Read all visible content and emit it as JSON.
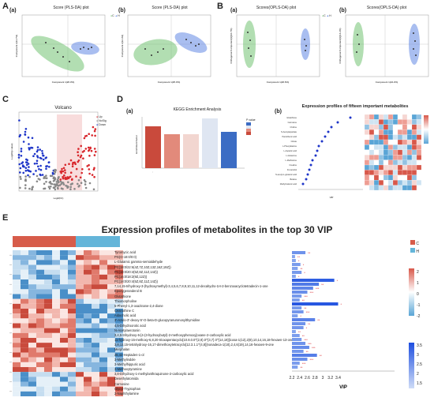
{
  "panels": {
    "A": {
      "letter": "A",
      "left": {
        "sub": "(a)",
        "title": "Score (PLS-DA) plot",
        "xlabel": "Component 1(26.3%)",
        "ylabel": "Component 2(13.7%)"
      },
      "right": {
        "sub": "(b)",
        "title": "Score (PLS-DA) plot",
        "xlabel": "Component 1(25.3%)",
        "ylabel": "Component 2(12.3%)"
      },
      "legend": [
        "C",
        "H"
      ]
    },
    "B": {
      "letter": "B",
      "left": {
        "sub": "(a)",
        "title": "Scores(OPLS-DA) plot",
        "xlabel": "Component 1(26.6%)",
        "ylabel": "Orthogonal Component[1](10.7%)"
      },
      "right": {
        "sub": "(b)",
        "title": "Scores(OPLS-DA) plot",
        "xlabel": "Component 1(24.2%)",
        "ylabel": "Orthogonal Component[1](14.2%)"
      },
      "legend": [
        "C",
        "H"
      ]
    },
    "C": {
      "letter": "C",
      "title": "Volcano",
      "xlabel": "Log2(FC)",
      "ylabel": "-Log10(p value)",
      "legend": [
        "Up",
        "NoSig",
        "Down"
      ]
    },
    "D": {
      "letter": "D",
      "a": {
        "sub": "(a)",
        "title": "KEGG Enrichment Analysis",
        "ylabel": "Enrichment factor",
        "legend_title": "P value"
      },
      "b": {
        "sub": "(b)",
        "title": "Expression profiles of fifteen important metabolites",
        "xlabel": "VIP",
        "metabolites": [
          "Glutathione",
          "Carnosine",
          "Choline",
          "N-Acetylaspartate",
          "Pantothenic acid",
          "Citrate",
          "L-Phenylalanine",
          "L-Aspartic acid",
          "L-Glutamine",
          "L-Methionine",
          "Creatine",
          "D-mannitol",
          "N-acetyl-L-glutamic acid",
          "Betaine",
          "Methylmalonic acid"
        ]
      }
    },
    "E": {
      "letter": "E",
      "title": "Expression profiles of metabolites in the top 30 VIP",
      "groups": [
        "C",
        "H"
      ],
      "xlabel": "VIP",
      "scale_ticks": [
        "2",
        "1",
        "0",
        "-1",
        "-2"
      ],
      "vip_ticks": [
        "3.5",
        "3",
        "2.5",
        "2",
        "1.5"
      ],
      "axis_ticks": [
        "2.2",
        "2.4",
        "2.6",
        "2.8",
        "3",
        "3.2",
        "3.4"
      ],
      "metabolites": [
        "Tyromycic acid",
        "PG(O-18:0/0:0)",
        "L-Glutamic gamma-semialdehyde",
        "PC(18:0/22:6(4Z,7Z,10Z,13Z,16Z,19Z))",
        "PC(18:0/20:4(5Z,8Z,11Z,14Z))",
        "PC(16:0/18:2(9Z,12Z))",
        "PC(18:0/20:4(5Z,8Z,11Z,14Z))",
        "7,14,15-trihydroxy-3-(hydroxymethyl)-3,4,5,6,7,8,9,10,11,12-decahydro-1H-2-benzoxacyclotetradecin-1-one",
        "Epoxygeranderol B",
        "Glutathione",
        "Thiomorpholine",
        "5-Phenyl-1,3-oxazinane-2,4-dione",
        "Ceanothine C",
        "Aldocholic acid",
        "3'-Azido-3'-deoxy-5'-O-beta-D-glucopyranuronosylthymidine",
        "4,5-Dihydroorotic acid",
        "N-Acetylaerotonin",
        "3,4,5-trihydroxy-6-[4-(3-hydroxybutyl)-2-methoxyphenoxy]oxane-2-carboxylic acid",
        "11-hydroxy-15-methoxy-6,8,20-trioxapentacyclo[10.8.0.0^{2,9}.0^{3,7}.0^{14,19}]icosa-1(12),2(9),10,14,16,18-hexaen-13-one",
        "3,8,13,15-tetrahydroxy-16,17-dimethoxytetracyclo[12.3.1.1^{4,8}]nonadeca-1(18),2,4,6(19),14,16-hexaen-9-one",
        "Merphalan",
        "26,42-Heptaden-1-ol",
        "3-Methylindole",
        "3-Methylhippuric acid",
        "3-Methoxytyramine",
        "3,8-Dihydroxy-1-methylanthraquinone-2-carboxylic acid",
        "Desethylatomida",
        "Carnosine",
        "Glycyl-Tryptophan",
        "2-Naphthylamine"
      ],
      "vip_values": [
        2.55,
        2.28,
        2.3,
        2.42,
        2.35,
        2.45,
        2.3,
        3.3,
        2.9,
        2.75,
        2.6,
        2.45,
        2.4,
        3.4,
        2.45,
        2.5,
        2.35,
        2.8,
        2.55,
        2.5,
        2.3,
        2.4,
        2.45,
        2.55,
        2.65,
        2.5,
        2.85,
        2.6,
        2.4,
        2.35
      ],
      "significance": [
        "**",
        "**",
        "*",
        "*",
        "**",
        "*",
        "*",
        "*",
        "**",
        "***",
        "***",
        "***",
        "**",
        "*",
        "**",
        "***",
        "*",
        "**",
        "**",
        "*",
        "**",
        "**",
        "***",
        "***",
        "***",
        "**",
        "**",
        "***",
        "***",
        "**"
      ]
    }
  },
  "colors": {
    "green": "#7fc87f",
    "blue": "#6f93e6",
    "heat_red": "#d8584a",
    "heat_blue": "#5aa5d6",
    "group_c": "#d75c4a",
    "group_h": "#64b5d9"
  }
}
